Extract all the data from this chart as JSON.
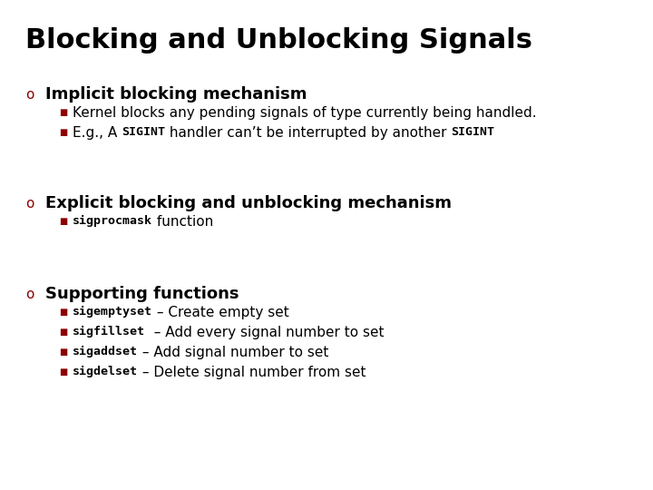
{
  "title": "Blocking and Unblocking Signals",
  "bg_color": "#ffffff",
  "title_color": "#000000",
  "title_fontsize": 22,
  "bullet_color": "#8B0000",
  "sub_bullet_color": "#8B0000",
  "text_color": "#000000",
  "heading_fontsize": 13,
  "sub_fontsize": 11,
  "code_fontsize": 9.5,
  "bullet_fontsize": 11,
  "sections": [
    {
      "bullet": "o",
      "heading": "Implicit blocking mechanism",
      "sub_items": [
        {
          "text_parts": [
            {
              "text": "Kernel blocks any pending signals of type currently being handled.",
              "style": "normal"
            }
          ]
        },
        {
          "text_parts": [
            {
              "text": "E.g., A ",
              "style": "normal"
            },
            {
              "text": "SIGINT",
              "style": "code"
            },
            {
              "text": " handler can’t be interrupted by another ",
              "style": "normal"
            },
            {
              "text": "SIGINT",
              "style": "code"
            }
          ]
        }
      ]
    },
    {
      "bullet": "o",
      "heading": "Explicit blocking and unblocking mechanism",
      "sub_items": [
        {
          "text_parts": [
            {
              "text": "sigprocmask",
              "style": "code"
            },
            {
              "text": " function",
              "style": "normal"
            }
          ]
        }
      ]
    },
    {
      "bullet": "o",
      "heading": "Supporting functions",
      "sub_items": [
        {
          "text_parts": [
            {
              "text": "sigemptyset",
              "style": "code"
            },
            {
              "text": " – Create empty set",
              "style": "normal"
            }
          ]
        },
        {
          "text_parts": [
            {
              "text": "sigfillset",
              "style": "code"
            },
            {
              "text": "  – Add every signal number to set",
              "style": "normal"
            }
          ]
        },
        {
          "text_parts": [
            {
              "text": "sigaddset",
              "style": "code"
            },
            {
              "text": " – Add signal number to set",
              "style": "normal"
            }
          ]
        },
        {
          "text_parts": [
            {
              "text": "sigdelset",
              "style": "code"
            },
            {
              "text": " – Delete signal number from set",
              "style": "normal"
            }
          ]
        }
      ]
    }
  ]
}
